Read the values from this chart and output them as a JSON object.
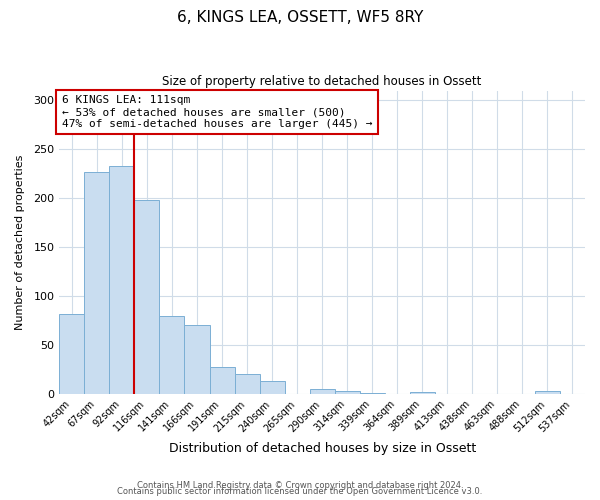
{
  "title": "6, KINGS LEA, OSSETT, WF5 8RY",
  "subtitle": "Size of property relative to detached houses in Ossett",
  "xlabel": "Distribution of detached houses by size in Ossett",
  "ylabel": "Number of detached properties",
  "bar_labels": [
    "42sqm",
    "67sqm",
    "92sqm",
    "116sqm",
    "141sqm",
    "166sqm",
    "191sqm",
    "215sqm",
    "240sqm",
    "265sqm",
    "290sqm",
    "314sqm",
    "339sqm",
    "364sqm",
    "389sqm",
    "413sqm",
    "438sqm",
    "463sqm",
    "488sqm",
    "512sqm",
    "537sqm"
  ],
  "bar_values": [
    82,
    227,
    233,
    198,
    80,
    70,
    27,
    20,
    13,
    0,
    5,
    3,
    1,
    0,
    2,
    0,
    0,
    0,
    0,
    3,
    0
  ],
  "bar_color": "#c9ddf0",
  "bar_edge_color": "#7bafd4",
  "vline_x": 2.5,
  "vline_color": "#cc0000",
  "annotation_text": "6 KINGS LEA: 111sqm\n← 53% of detached houses are smaller (500)\n47% of semi-detached houses are larger (445) →",
  "annotation_box_color": "#ffffff",
  "annotation_box_edge_color": "#cc0000",
  "ylim": [
    0,
    310
  ],
  "yticks": [
    0,
    50,
    100,
    150,
    200,
    250,
    300
  ],
  "footer_line1": "Contains HM Land Registry data © Crown copyright and database right 2024.",
  "footer_line2": "Contains public sector information licensed under the Open Government Licence v3.0.",
  "background_color": "#ffffff",
  "grid_color": "#d0dce8"
}
